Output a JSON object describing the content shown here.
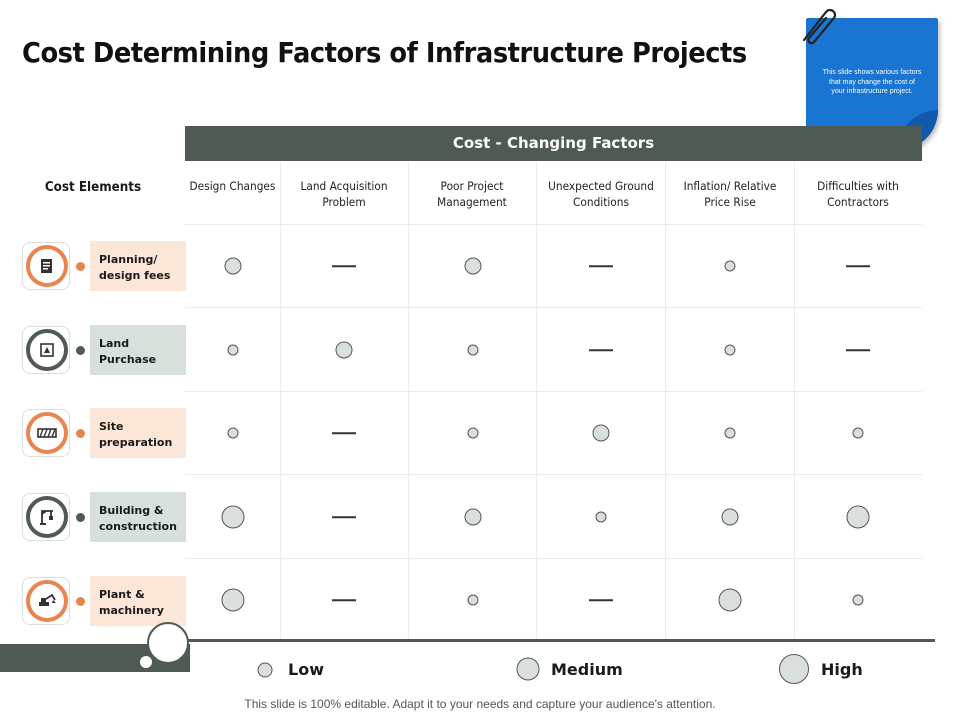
{
  "title": "Cost Determining Factors of Infrastructure Projects",
  "note": {
    "text": "This slide shows various factors that may change the cost of your infrastructure project."
  },
  "header": "Cost - Changing Factors",
  "cost_elements_label": "Cost Elements",
  "columns": [
    "Design Changes",
    "Land Acquisition Problem",
    "Poor Project Management",
    "Unexpected Ground Conditions",
    "Inflation/ Relative Price Rise",
    "Difficulties with Contractors"
  ],
  "rows": [
    {
      "label": "Planning/ design fees",
      "icon": "document-icon",
      "values": [
        "medium",
        "none",
        "medium",
        "none",
        "low",
        "none"
      ]
    },
    {
      "label": "Land Purchase",
      "icon": "land-deed-icon",
      "values": [
        "low",
        "medium",
        "low",
        "none",
        "low",
        "none"
      ]
    },
    {
      "label": "Site preparation",
      "icon": "fence-icon",
      "values": [
        "low",
        "none",
        "low",
        "medium",
        "low",
        "low"
      ]
    },
    {
      "label": "Building & construction",
      "icon": "crane-icon",
      "values": [
        "high",
        "none",
        "medium",
        "low",
        "medium",
        "high"
      ]
    },
    {
      "label": "Plant & machinery",
      "icon": "excavator-icon",
      "values": [
        "high",
        "none",
        "low",
        "none",
        "high",
        "low"
      ]
    }
  ],
  "legend": {
    "low": "Low",
    "medium": "Medium",
    "high": "High"
  },
  "footer": "This slide is 100% editable. Adapt it to your needs and capture your audience's attention.",
  "colors": {
    "accent_orange": "#e8844e",
    "dark_band": "#4f5b52",
    "note_blue": "#1a74d2"
  }
}
